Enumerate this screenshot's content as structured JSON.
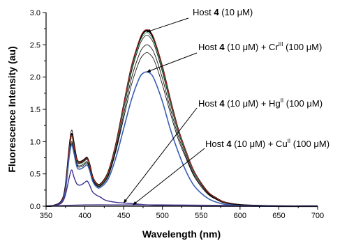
{
  "chart_data": {
    "type": "line",
    "xlabel": "Wavelength (nm)",
    "ylabel": "Fluorescence Intensity (au)",
    "xlim": [
      350,
      700
    ],
    "ylim": [
      0,
      3.0
    ],
    "xticks": [
      350,
      400,
      450,
      500,
      550,
      600,
      650,
      700
    ],
    "yticks": [
      0.0,
      0.5,
      1.0,
      1.5,
      2.0,
      2.5,
      3.0
    ],
    "x_tick_labels": [
      "350",
      "400",
      "450",
      "500",
      "550",
      "600",
      "650",
      "700"
    ],
    "y_tick_labels": [
      "0.0",
      "0.5",
      "1.0",
      "1.5",
      "2.0",
      "2.5",
      "3.0"
    ],
    "grid": false,
    "legend": "none",
    "annotations": [
      {
        "prefix": "Host ",
        "bold": "4",
        "mid": " (10 μM)",
        "ion": "",
        "ion_sup": "",
        "suffix": "",
        "points_to": [
          480,
          2.7
        ]
      },
      {
        "prefix": "Host ",
        "bold": "4",
        "mid": " (10 μM) + Cr",
        "ion": "",
        "ion_sup": "III",
        "suffix": " (100 μM)",
        "points_to": [
          480,
          2.08
        ]
      },
      {
        "prefix": "Host ",
        "bold": "4",
        "mid": " (10 μM) + Hg",
        "ion": "",
        "ion_sup": "II",
        "suffix": " (100 μM)",
        "points_to": [
          450,
          0.05
        ]
      },
      {
        "prefix": "Host ",
        "bold": "4",
        "mid": " (10 μM) + Cu",
        "ion": "",
        "ion_sup": "II",
        "suffix": " (100 μM)",
        "points_to": [
          462,
          0.02
        ]
      }
    ],
    "series": [
      {
        "color": "#000000",
        "width": 2.2,
        "x": [
          350,
          360,
          370,
          375,
          380,
          383,
          386,
          390,
          395,
          400,
          403,
          406,
          410,
          415,
          420,
          430,
          440,
          450,
          460,
          470,
          475,
          480,
          485,
          490,
          500,
          510,
          520,
          530,
          540,
          550,
          560,
          570,
          580,
          600,
          620,
          650,
          680,
          700
        ],
        "y": [
          0.0,
          0.01,
          0.08,
          0.3,
          0.9,
          1.12,
          0.95,
          0.7,
          0.68,
          0.72,
          0.74,
          0.65,
          0.45,
          0.35,
          0.34,
          0.52,
          0.95,
          1.55,
          2.15,
          2.55,
          2.68,
          2.72,
          2.68,
          2.55,
          2.15,
          1.65,
          1.2,
          0.85,
          0.55,
          0.35,
          0.2,
          0.12,
          0.06,
          0.02,
          0.01,
          0.0,
          0.0,
          0.0
        ]
      },
      {
        "color": "#000000",
        "width": 0.8,
        "x": [
          350,
          360,
          370,
          375,
          380,
          383,
          386,
          390,
          395,
          400,
          403,
          406,
          410,
          415,
          420,
          430,
          440,
          450,
          460,
          470,
          475,
          480,
          485,
          490,
          500,
          510,
          520,
          530,
          540,
          550,
          560,
          570,
          580,
          600,
          620,
          650,
          680,
          700
        ],
        "y": [
          0.0,
          0.01,
          0.08,
          0.32,
          0.95,
          1.18,
          1.0,
          0.73,
          0.7,
          0.74,
          0.76,
          0.67,
          0.46,
          0.36,
          0.35,
          0.5,
          0.92,
          1.5,
          2.08,
          2.48,
          2.6,
          2.65,
          2.6,
          2.48,
          2.08,
          1.6,
          1.16,
          0.82,
          0.53,
          0.34,
          0.19,
          0.11,
          0.06,
          0.02,
          0.01,
          0.0,
          0.0,
          0.0
        ]
      },
      {
        "color": "#2e8b57",
        "width": 0.8,
        "x": [
          350,
          360,
          370,
          375,
          380,
          383,
          386,
          390,
          395,
          400,
          403,
          406,
          410,
          415,
          420,
          430,
          440,
          450,
          460,
          470,
          475,
          480,
          485,
          490,
          500,
          510,
          520,
          530,
          540,
          550,
          560,
          570,
          580,
          600,
          620,
          650,
          680,
          700
        ],
        "y": [
          0.0,
          0.01,
          0.07,
          0.28,
          0.88,
          1.08,
          0.92,
          0.68,
          0.66,
          0.7,
          0.72,
          0.63,
          0.44,
          0.34,
          0.33,
          0.5,
          0.93,
          1.52,
          2.12,
          2.52,
          2.64,
          2.69,
          2.64,
          2.52,
          2.12,
          1.62,
          1.18,
          0.84,
          0.54,
          0.34,
          0.2,
          0.12,
          0.06,
          0.02,
          0.01,
          0.0,
          0.0,
          0.0
        ]
      },
      {
        "color": "#cc2222",
        "width": 0.8,
        "x": [
          350,
          360,
          370,
          375,
          380,
          383,
          386,
          390,
          395,
          400,
          403,
          406,
          410,
          415,
          420,
          430,
          440,
          450,
          460,
          470,
          475,
          480,
          485,
          490,
          500,
          510,
          520,
          530,
          540,
          550,
          560,
          570,
          580,
          600,
          620,
          650,
          680,
          700
        ],
        "y": [
          0.0,
          0.01,
          0.08,
          0.3,
          0.9,
          1.1,
          0.94,
          0.7,
          0.68,
          0.72,
          0.74,
          0.65,
          0.45,
          0.35,
          0.34,
          0.52,
          0.96,
          1.56,
          2.17,
          2.57,
          2.7,
          2.74,
          2.7,
          2.57,
          2.17,
          1.66,
          1.21,
          0.86,
          0.56,
          0.35,
          0.2,
          0.12,
          0.06,
          0.02,
          0.01,
          0.0,
          0.0,
          0.0
        ]
      },
      {
        "color": "#000000",
        "width": 0.8,
        "x": [
          350,
          360,
          370,
          375,
          380,
          383,
          386,
          390,
          395,
          400,
          403,
          406,
          410,
          415,
          420,
          430,
          440,
          450,
          460,
          470,
          475,
          480,
          485,
          490,
          500,
          510,
          520,
          530,
          540,
          550,
          560,
          570,
          580,
          600,
          620,
          650,
          680,
          700
        ],
        "y": [
          0.0,
          0.01,
          0.07,
          0.27,
          0.82,
          1.0,
          0.87,
          0.65,
          0.63,
          0.67,
          0.69,
          0.6,
          0.42,
          0.33,
          0.32,
          0.48,
          0.88,
          1.42,
          1.98,
          2.35,
          2.46,
          2.5,
          2.46,
          2.35,
          1.98,
          1.52,
          1.1,
          0.78,
          0.5,
          0.32,
          0.18,
          0.1,
          0.05,
          0.02,
          0.01,
          0.0,
          0.0,
          0.0
        ]
      },
      {
        "color": "#000000",
        "width": 0.8,
        "x": [
          350,
          360,
          370,
          375,
          380,
          383,
          386,
          390,
          395,
          400,
          403,
          406,
          410,
          415,
          420,
          430,
          440,
          450,
          460,
          470,
          475,
          480,
          485,
          490,
          500,
          510,
          520,
          530,
          540,
          550,
          560,
          570,
          580,
          600,
          620,
          650,
          680,
          700
        ],
        "y": [
          0.0,
          0.01,
          0.07,
          0.26,
          0.8,
          0.97,
          0.85,
          0.63,
          0.61,
          0.65,
          0.67,
          0.59,
          0.41,
          0.32,
          0.31,
          0.46,
          0.85,
          1.36,
          1.88,
          2.24,
          2.34,
          2.38,
          2.34,
          2.24,
          1.88,
          1.45,
          1.05,
          0.75,
          0.48,
          0.3,
          0.17,
          0.1,
          0.05,
          0.02,
          0.01,
          0.0,
          0.0,
          0.0
        ]
      },
      {
        "color": "#3a5fb0",
        "width": 1.6,
        "x": [
          350,
          360,
          370,
          375,
          380,
          383,
          386,
          390,
          395,
          400,
          403,
          406,
          410,
          415,
          420,
          430,
          440,
          450,
          460,
          470,
          475,
          480,
          485,
          490,
          500,
          510,
          520,
          530,
          540,
          550,
          560,
          570,
          580,
          600,
          620,
          650,
          680,
          700
        ],
        "y": [
          0.0,
          0.01,
          0.06,
          0.25,
          0.78,
          0.95,
          0.82,
          0.6,
          0.58,
          0.62,
          0.64,
          0.56,
          0.39,
          0.3,
          0.29,
          0.42,
          0.75,
          1.2,
          1.65,
          1.98,
          2.06,
          2.08,
          2.05,
          1.95,
          1.62,
          1.2,
          0.85,
          0.55,
          0.33,
          0.2,
          0.11,
          0.06,
          0.03,
          0.01,
          0.0,
          0.0,
          0.0,
          0.0
        ]
      },
      {
        "color": "#3b2e8f",
        "width": 1.4,
        "x": [
          350,
          360,
          370,
          375,
          380,
          383,
          386,
          390,
          395,
          400,
          403,
          406,
          410,
          415,
          420,
          425,
          430,
          440,
          450,
          460,
          470,
          480,
          500,
          550,
          600,
          700
        ],
        "y": [
          0.0,
          0.01,
          0.05,
          0.18,
          0.45,
          0.56,
          0.45,
          0.34,
          0.33,
          0.37,
          0.39,
          0.33,
          0.22,
          0.17,
          0.14,
          0.1,
          0.08,
          0.06,
          0.05,
          0.04,
          0.03,
          0.02,
          0.01,
          0.0,
          0.0,
          0.0
        ]
      },
      {
        "color": "#5a4a9a",
        "width": 1.4,
        "x": [
          350,
          400,
          450,
          500,
          550,
          600,
          700
        ],
        "y": [
          0.0,
          0.02,
          0.02,
          0.02,
          0.015,
          0.01,
          0.0
        ]
      }
    ]
  }
}
